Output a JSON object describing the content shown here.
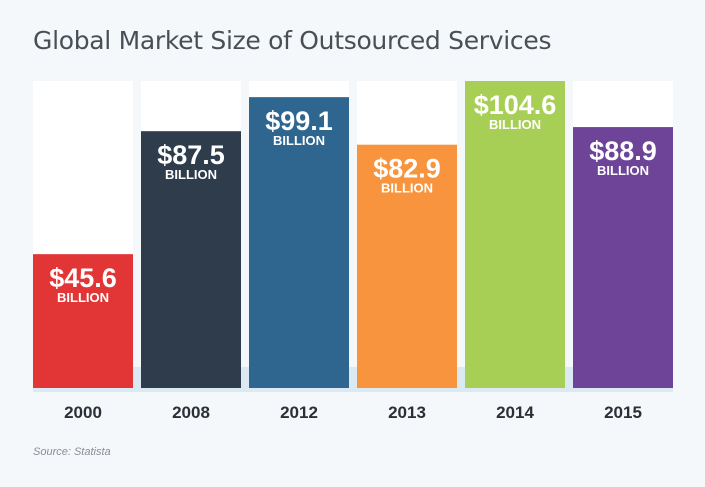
{
  "chart_data": {
    "type": "bar",
    "title": "Global Market Size of Outsourced Services",
    "categories": [
      "2000",
      "2008",
      "2012",
      "2013",
      "2014",
      "2015"
    ],
    "values": [
      45.6,
      87.5,
      99.1,
      82.9,
      104.6,
      88.9
    ],
    "value_labels": [
      "$45.6",
      "$87.5",
      "$99.1",
      "$82.9",
      "$104.6",
      "$88.9"
    ],
    "unit_label": "BILLION",
    "colors": [
      "#e23636",
      "#2e3c4b",
      "#2f6690",
      "#f7943d",
      "#a8cf55",
      "#6e4499"
    ],
    "ylim": [
      0,
      104.6
    ],
    "grid": false,
    "legend": "none"
  },
  "source": "Source: Statista"
}
